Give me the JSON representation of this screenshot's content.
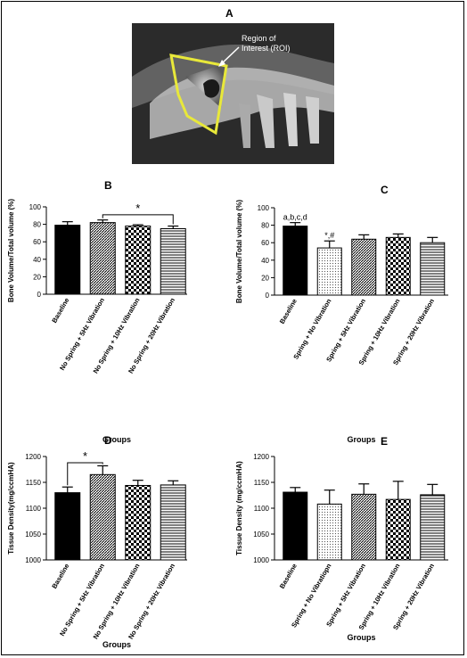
{
  "panel_letters": {
    "a": "A"
  },
  "roi_label": "Region of\nInterest (ROI)",
  "colors": {
    "roi": "#e8e83a",
    "bar_stroke": "#000000"
  },
  "chart_data": [
    {
      "panel": "B",
      "type": "bar",
      "ylabel": "Bone Volume/Total volume (%)",
      "xlabel": "Groups",
      "ylim": [
        0,
        100
      ],
      "yticks": [
        0,
        20,
        40,
        60,
        80,
        100
      ],
      "categories": [
        "Baseline",
        "No Spring + 5Hz Vibration",
        "No Spring + 10Hz Vibration",
        "No Spring + 20Hz Vibration"
      ],
      "values": [
        79,
        82,
        78,
        75
      ],
      "errors": [
        4,
        3,
        1.5,
        3
      ],
      "fills": [
        "solid",
        "diag",
        "check",
        "hlines"
      ],
      "significance": [
        {
          "from": 1,
          "to": 3,
          "label": "*",
          "level": 91
        }
      ],
      "point_labels": []
    },
    {
      "panel": "C",
      "type": "bar",
      "ylabel": "Bone Volume/Total volume (%)",
      "xlabel": "Groups",
      "ylim": [
        0,
        100
      ],
      "yticks": [
        0,
        20,
        40,
        60,
        80,
        100
      ],
      "categories": [
        "Baseline",
        "Spring + No Vibration",
        "Spring + 5Hz Vibration",
        "Spring + 10Hz Vibration",
        "Spring + 20Hz Vibration"
      ],
      "values": [
        79,
        54,
        64,
        66,
        60
      ],
      "errors": [
        4,
        8,
        5,
        4,
        6
      ],
      "fills": [
        "solid",
        "dots",
        "diag",
        "check",
        "hlines"
      ],
      "significance": [],
      "point_labels": [
        {
          "index": 0,
          "label": "a,b,c,d"
        },
        {
          "index": 1,
          "label": "*,#"
        }
      ]
    },
    {
      "panel": "D",
      "type": "bar",
      "ylabel": "Tissue Density(mg/ccmHA)",
      "xlabel": "Groups",
      "ylim": [
        1000,
        1200
      ],
      "yticks": [
        1000,
        1050,
        1100,
        1150,
        1200
      ],
      "categories": [
        "Baseline",
        "No Spring + 5Hz Vibration",
        "No Spring + 10Hz Vibration",
        "No Spring + 20Hz Vibration"
      ],
      "values": [
        1130,
        1165,
        1144,
        1145
      ],
      "errors": [
        11,
        17,
        10,
        8
      ],
      "fills": [
        "solid",
        "diag",
        "check",
        "hlines"
      ],
      "significance": [
        {
          "from": 0,
          "to": 1,
          "label": "*",
          "level": 1188
        }
      ],
      "point_labels": []
    },
    {
      "panel": "E",
      "type": "bar",
      "ylabel": "Tissue Density (mg/ccmHA)",
      "xlabel": "Groups",
      "ylim": [
        1000,
        1200
      ],
      "yticks": [
        1000,
        1050,
        1100,
        1150,
        1200
      ],
      "categories": [
        "Baseline",
        "Spring + No Vibratiopn",
        "Spring + 5Hz Vibration",
        "Spring + 10Hz Vibration",
        "Spring + 20Hz Vibration"
      ],
      "values": [
        1131,
        1108,
        1127,
        1117,
        1126
      ],
      "errors": [
        9,
        27,
        20,
        35,
        20
      ],
      "fills": [
        "solid",
        "dots",
        "diag",
        "check",
        "hlines"
      ],
      "significance": [],
      "point_labels": []
    }
  ]
}
